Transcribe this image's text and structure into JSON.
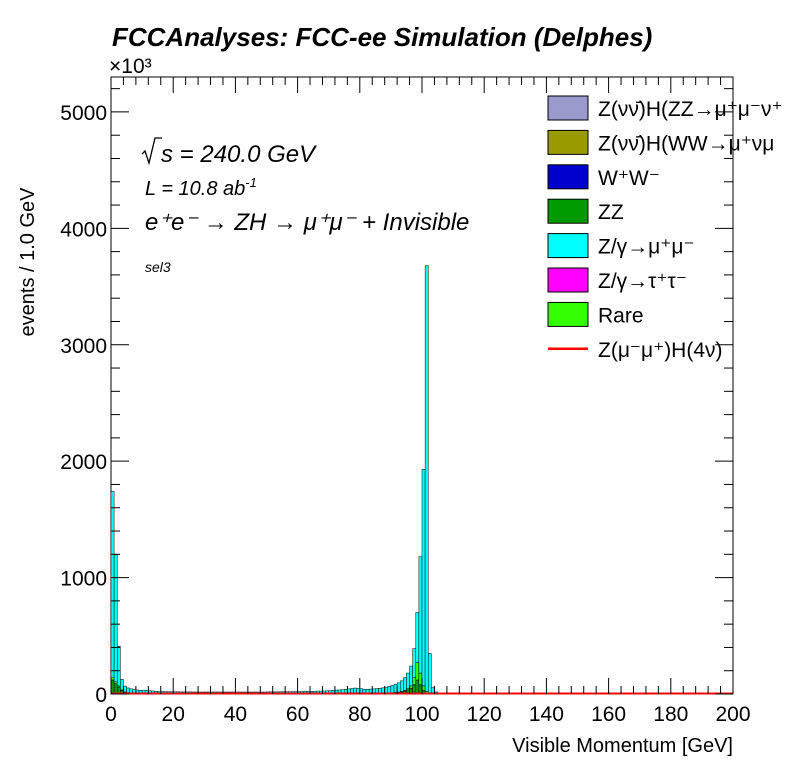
{
  "chart_data": {
    "type": "bar",
    "title": "FCCAnalyses: FCC-ee Simulation (Delphes)",
    "xlabel": "Visible Momentum [GeV]",
    "ylabel": "events / 1.0 GeV",
    "y_multiplier": "×10³",
    "xlim": [
      0,
      200
    ],
    "ylim": [
      0,
      5300
    ],
    "x_ticks": [
      "0",
      "20",
      "40",
      "60",
      "80",
      "100",
      "120",
      "140",
      "160",
      "180",
      "200"
    ],
    "y_ticks": [
      "0",
      "1000",
      "2000",
      "3000",
      "4000",
      "5000"
    ],
    "annotations": {
      "sqrt_s": "s = 240.0 GeV",
      "lumi": "L = 10.8 ab",
      "lumi_exp": "-1",
      "process": "e⁺e⁻ → ZH → μ⁺μ⁻ + Invisible",
      "selection": "sel3"
    },
    "legend": [
      {
        "name": "Z(νν̄)H(ZZ→μ⁺μ⁻ν⁺",
        "color": "#9999cc",
        "type": "box"
      },
      {
        "name": "Z(νν̄)H(WW→μ⁺νμ",
        "color": "#999900",
        "type": "box"
      },
      {
        "name": "W⁺W⁻",
        "color": "#0000cc",
        "type": "box"
      },
      {
        "name": "ZZ",
        "color": "#009900",
        "type": "box"
      },
      {
        "name": "Z/γ→μ⁺μ⁻",
        "color": "#00ffff",
        "type": "box"
      },
      {
        "name": "Z/γ→τ⁺τ⁻",
        "color": "#ff00ff",
        "type": "box"
      },
      {
        "name": "Rare",
        "color": "#33ff00",
        "type": "box"
      },
      {
        "name": "Z(μ⁻μ⁺)H(4ν)",
        "color": "#ff0000",
        "type": "line"
      }
    ],
    "bin_width": 1.0,
    "x": [
      0,
      1,
      2,
      3,
      4,
      5,
      6,
      7,
      8,
      9,
      10,
      11,
      12,
      13,
      14,
      15,
      16,
      17,
      18,
      19,
      20,
      21,
      22,
      23,
      24,
      25,
      26,
      27,
      28,
      29,
      30,
      31,
      32,
      33,
      34,
      35,
      36,
      37,
      38,
      39,
      40,
      41,
      42,
      43,
      44,
      45,
      46,
      47,
      48,
      49,
      50,
      51,
      52,
      53,
      54,
      55,
      56,
      57,
      58,
      59,
      60,
      61,
      62,
      63,
      64,
      65,
      66,
      67,
      68,
      69,
      70,
      71,
      72,
      73,
      74,
      75,
      76,
      77,
      78,
      79,
      80,
      81,
      82,
      83,
      84,
      85,
      86,
      87,
      88,
      89,
      90,
      91,
      92,
      93,
      94,
      95,
      96,
      97,
      98,
      99,
      100,
      101,
      102,
      103,
      104,
      105,
      106,
      107,
      108,
      109
    ],
    "series": [
      {
        "name": "ZZ",
        "color": "#009900",
        "values": [
          120,
          90,
          60,
          30,
          15,
          10,
          8,
          6,
          5,
          5,
          5,
          5,
          5,
          5,
          4,
          4,
          4,
          4,
          4,
          4,
          4,
          4,
          4,
          4,
          4,
          4,
          4,
          4,
          4,
          4,
          4,
          4,
          4,
          4,
          4,
          4,
          4,
          4,
          4,
          4,
          4,
          4,
          4,
          4,
          4,
          4,
          4,
          4,
          4,
          4,
          4,
          4,
          4,
          4,
          4,
          4,
          4,
          4,
          4,
          4,
          4,
          4,
          4,
          4,
          4,
          4,
          4,
          4,
          4,
          4,
          4,
          4,
          4,
          4,
          4,
          5,
          5,
          6,
          8,
          10,
          8,
          6,
          5,
          5,
          5,
          6,
          6,
          7,
          8,
          9,
          10,
          12,
          14,
          18,
          25,
          35,
          50,
          80,
          120,
          80,
          30,
          10,
          5,
          3,
          2,
          1,
          1,
          1,
          1,
          1
        ]
      },
      {
        "name": "Rare",
        "color": "#33ff00",
        "values": [
          20,
          15,
          10,
          5,
          3,
          2,
          1,
          1,
          1,
          1,
          1,
          1,
          1,
          1,
          1,
          1,
          1,
          1,
          1,
          1,
          1,
          1,
          1,
          1,
          1,
          1,
          1,
          1,
          1,
          1,
          1,
          1,
          1,
          1,
          1,
          1,
          1,
          1,
          1,
          1,
          1,
          1,
          1,
          1,
          1,
          1,
          1,
          1,
          1,
          1,
          1,
          1,
          1,
          1,
          1,
          1,
          1,
          1,
          1,
          1,
          1,
          1,
          1,
          1,
          1,
          1,
          1,
          1,
          1,
          1,
          1,
          1,
          1,
          1,
          1,
          1,
          1,
          1,
          1,
          1,
          1,
          1,
          1,
          1,
          1,
          1,
          1,
          1,
          1,
          1,
          1,
          2,
          2,
          3,
          5,
          10,
          20,
          60,
          150,
          100,
          40,
          10,
          3,
          1,
          1,
          0,
          0,
          0,
          0,
          0
        ]
      },
      {
        "name": "Z/γ→μ⁺μ⁻",
        "color": "#00ffff",
        "values": [
          1600,
          1090,
          340,
          90,
          50,
          40,
          35,
          30,
          28,
          26,
          25,
          24,
          22,
          20,
          18,
          17,
          16,
          15,
          15,
          14,
          14,
          14,
          13,
          13,
          13,
          13,
          12,
          12,
          12,
          12,
          12,
          12,
          12,
          12,
          12,
          12,
          12,
          12,
          12,
          12,
          12,
          12,
          12,
          12,
          12,
          12,
          12,
          12,
          12,
          12,
          13,
          13,
          13,
          13,
          14,
          14,
          14,
          15,
          15,
          15,
          16,
          16,
          17,
          17,
          18,
          19,
          20,
          20,
          21,
          22,
          24,
          26,
          28,
          30,
          32,
          35,
          38,
          40,
          42,
          38,
          36,
          34,
          35,
          36,
          38,
          40,
          42,
          45,
          50,
          55,
          62,
          70,
          80,
          92,
          110,
          135,
          170,
          250,
          430,
          1000,
          1860,
          3660,
          340,
          50,
          15,
          8,
          5,
          4,
          3,
          2
        ]
      },
      {
        "name": "Z(μ⁻μ⁺)H(4ν)",
        "color": "#ff0000",
        "values": [
          0,
          0,
          0,
          0,
          0,
          0,
          0,
          0,
          0,
          0,
          0,
          0,
          0,
          0,
          0,
          0,
          0,
          0,
          0,
          0,
          0,
          0,
          0,
          0,
          0,
          0,
          0,
          0,
          0,
          0,
          0,
          0,
          0,
          0,
          0,
          0,
          0,
          0,
          0,
          0,
          0,
          0,
          0,
          0,
          0,
          0,
          0,
          0,
          0,
          0,
          0,
          0,
          0,
          0,
          0,
          0,
          0,
          0,
          0,
          0,
          0,
          0,
          0,
          0,
          0,
          0,
          0,
          0,
          0,
          0,
          0,
          0,
          0,
          0,
          0,
          0,
          0,
          0,
          0,
          0,
          0,
          0,
          0,
          0,
          0,
          0,
          0,
          0,
          0,
          0,
          0,
          0,
          0,
          0,
          0,
          0,
          0,
          0,
          0,
          0,
          0,
          0,
          0,
          0,
          0,
          0,
          0,
          0,
          0,
          0
        ]
      }
    ]
  }
}
